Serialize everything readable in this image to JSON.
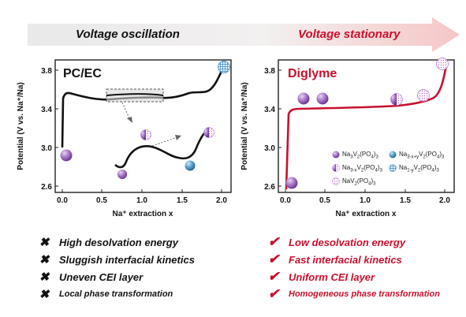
{
  "header": {
    "left_title": "Voltage oscillation",
    "right_title": "Voltage stationary",
    "left_color": "#111111",
    "right_color": "#c8102e"
  },
  "panels": [
    {
      "label": "PC/EC",
      "label_color": "#111111",
      "ylabel": "Potential (V vs. Na⁺/Na)",
      "xlabel": "Na⁺ extraction x",
      "xticks": [
        "0.0",
        "0.5",
        "1.0",
        "1.5",
        "2.0"
      ],
      "yticks": [
        "2.6",
        "3.0",
        "3.4",
        "3.8"
      ]
    },
    {
      "label": "Diglyme",
      "label_color": "#c8102e",
      "ylabel": "Potential (V vs. Na⁺/Na)",
      "xlabel": "Na⁺ extraction x",
      "xticks": [
        "0.0",
        "0.5",
        "1.0",
        "1.5",
        "2.0"
      ],
      "yticks": [
        "2.6",
        "3.0",
        "3.4",
        "3.8"
      ]
    }
  ],
  "legend": {
    "items": [
      {
        "icon": "full-sphere-icon",
        "text": "Na3V2(PO4)3"
      },
      {
        "icon": "mixed-sphere-icon",
        "text": "Na3-xV2(PO4)3"
      },
      {
        "icon": "dotted-sphere-icon",
        "text": "NaV2(PO4)3"
      },
      {
        "icon": "blue-sphere-icon",
        "text": "Na3-x+yV2(PO4)3"
      },
      {
        "icon": "grid-sphere-icon",
        "text": "Na1-yV2(PO4)3"
      }
    ]
  },
  "left_list": {
    "mark": "✖",
    "color": "#111111",
    "items": [
      "High desolvation energy",
      "Sluggish interfacial kinetics",
      "Uneven CEI layer",
      "Local phase transformation"
    ]
  },
  "right_list": {
    "mark": "✔",
    "color": "#c8102e",
    "items": [
      "Low desolvation energy",
      "Fast interfacial kinetics",
      "Uniform CEI layer",
      "Homogeneous phase transformation"
    ]
  }
}
